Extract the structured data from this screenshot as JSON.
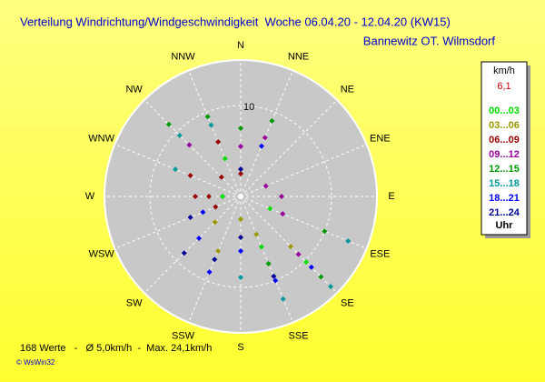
{
  "chart_data": {
    "type": "polar-scatter",
    "title": "Verteilung Windrichtung/Windgeschwindigkeit  Woche 06.04.20 - 12.04.20 (KW15)",
    "subtitle": "Bannewitz OT. Wilmsdorf",
    "directions": [
      "N",
      "NNE",
      "NE",
      "ENE",
      "E",
      "ESE",
      "SE",
      "SSE",
      "S",
      "SSW",
      "SW",
      "WSW",
      "W",
      "WNW",
      "NW",
      "NNW"
    ],
    "rlim": [
      0,
      15
    ],
    "rticks": [
      10
    ],
    "legend_title": "km/h",
    "legend_value": "6,1",
    "legend_footer": "Uhr",
    "footer": "168 Werte   -   Ø 5,0km/h  -  Max. 24,1km/h",
    "credit": "© WsWin32",
    "series": [
      {
        "name": "00...03",
        "color": "#00dd00",
        "direction": [
          135,
          157.5,
          112.5,
          337.5,
          270
        ],
        "speed": [
          10.2,
          6.0,
          3.5,
          4.5,
          2.0
        ]
      },
      {
        "name": "03...06",
        "color": "#999900",
        "direction": [
          157.5,
          135,
          202.5,
          225,
          180
        ],
        "speed": [
          4.5,
          7.8,
          6.5,
          4.0,
          2.5
        ]
      },
      {
        "name": "06...09",
        "color": "#990000",
        "direction": [
          270,
          270,
          292.5,
          315,
          337.5,
          0,
          247.5
        ],
        "speed": [
          3.5,
          5.0,
          6.0,
          3.0,
          6.5,
          2.5,
          3.0
        ]
      },
      {
        "name": "09...12",
        "color": "#990099",
        "direction": [
          0,
          22.5,
          67.5,
          90,
          112.5,
          315,
          135
        ],
        "speed": [
          5.5,
          7.0,
          3.0,
          4.5,
          5.0,
          8.0,
          9.0
        ]
      },
      {
        "name": "12...15",
        "color": "#009900",
        "direction": [
          22.5,
          0,
          337.5,
          315,
          157.5,
          135,
          112.5
        ],
        "speed": [
          9.0,
          7.5,
          9.5,
          11.2,
          8.0,
          12.5,
          10.0
        ]
      },
      {
        "name": "15...18",
        "color": "#009999",
        "direction": [
          135,
          157.5,
          112.5,
          315,
          337.5,
          292.5,
          180
        ],
        "speed": [
          14.0,
          12.2,
          12.8,
          9.5,
          8.5,
          7.8,
          8.9
        ]
      },
      {
        "name": "18...21",
        "color": "#0000ff",
        "direction": [
          202.5,
          225,
          157.5,
          135,
          180,
          22.5,
          247.5
        ],
        "speed": [
          9.0,
          6.5,
          10.0,
          11.0,
          6.0,
          6.0,
          4.5
        ]
      },
      {
        "name": "21...24",
        "color": "#000099",
        "direction": [
          202.5,
          225,
          247.5,
          180,
          157.5,
          0
        ],
        "speed": [
          7.5,
          8.8,
          6.0,
          4.5,
          9.5,
          3.0
        ]
      }
    ]
  }
}
